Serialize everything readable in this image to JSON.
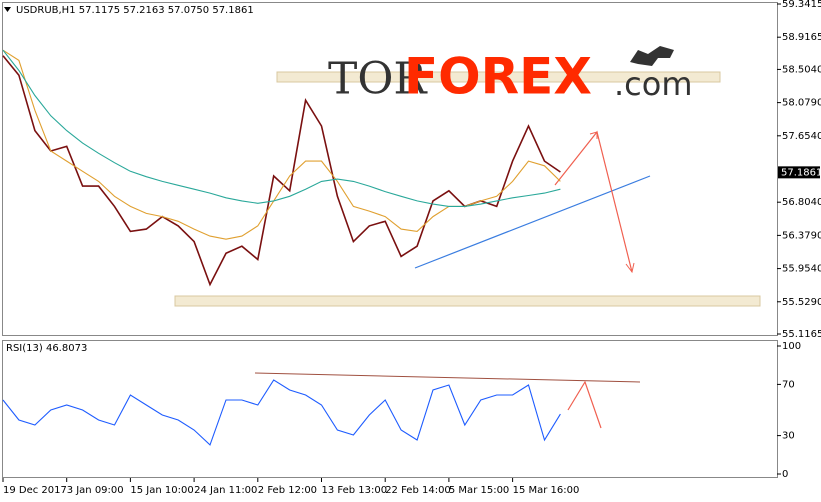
{
  "chart_data": [
    {
      "type": "line",
      "title": "USDRUB,H1 57.1175 57.2163 57.0750 57.1861",
      "categories": [
        "19 Dec 2017",
        null,
        null,
        null,
        "3 Jan 09:00",
        null,
        null,
        null,
        "15 Jan 10:00",
        null,
        null,
        null,
        "24 Jan 11:00",
        null,
        null,
        null,
        "2 Feb 12:00",
        null,
        null,
        null,
        "13 Feb 13:00",
        null,
        null,
        null,
        "22 Feb 14:00",
        null,
        null,
        null,
        "5 Mar 15:00",
        null,
        null,
        null,
        "15 Mar 16:00",
        null,
        null,
        null
      ],
      "series": [
        {
          "color": "#7a1010",
          "values": [
            58.68,
            58.43,
            57.72,
            57.46,
            57.52,
            57.01,
            57.01,
            56.75,
            56.43,
            56.46,
            56.62,
            56.5,
            56.3,
            55.75,
            56.15,
            56.24,
            56.07,
            57.14,
            56.95,
            58.11,
            57.78,
            56.88,
            56.3,
            56.5,
            56.56,
            56.11,
            56.24,
            56.82,
            56.95,
            56.75,
            56.82,
            56.75,
            57.33,
            57.78,
            57.33,
            57.19
          ]
        },
        {
          "color": "#e0a030",
          "values": [
            58.75,
            58.62,
            57.98,
            57.46,
            57.33,
            57.2,
            57.07,
            56.88,
            56.75,
            56.66,
            56.62,
            56.56,
            56.46,
            56.37,
            56.33,
            56.37,
            56.5,
            56.82,
            57.14,
            57.33,
            57.33,
            57.07,
            56.75,
            56.69,
            56.62,
            56.46,
            56.43,
            56.62,
            56.75,
            56.75,
            56.82,
            56.88,
            57.07,
            57.33,
            57.27,
            57.07
          ]
        },
        {
          "color": "#2aa89a",
          "values": [
            58.75,
            58.49,
            58.17,
            57.91,
            57.72,
            57.56,
            57.43,
            57.31,
            57.2,
            57.13,
            57.07,
            57.02,
            56.97,
            56.92,
            56.86,
            56.82,
            56.79,
            56.82,
            56.88,
            56.97,
            57.07,
            57.1,
            57.07,
            57.01,
            56.94,
            56.88,
            56.82,
            56.78,
            56.75,
            56.75,
            56.78,
            56.82,
            56.86,
            56.89,
            56.92,
            56.97
          ]
        }
      ],
      "ylim": [
        55.1165,
        59.3415
      ],
      "yticks": [
        59.3415,
        58.9165,
        {
          "value": 58.504,
          "label": "58.5040"
        },
        {
          "value": 58.079,
          "label": "58.0790"
        },
        {
          "value": 57.654,
          "label": "57.6540"
        },
        {
          "value": 56.804,
          "label": "56.8040"
        },
        {
          "value": 56.379,
          "label": "56.3790"
        },
        {
          "value": 55.954,
          "label": "55.9540"
        },
        {
          "value": 55.529,
          "label": "55.5290"
        },
        55.1165
      ],
      "last_price": 57.1861,
      "watermark": {
        "left": "TOR",
        "middle": "FOREX",
        "right": ".com"
      }
    },
    {
      "type": "line",
      "title": "RSI(13) 46.8073",
      "series": [
        {
          "color": "#1e5cff",
          "values": [
            57.8,
            42.2,
            38.3,
            50,
            53.9,
            50,
            42.2,
            38.3,
            61.7,
            53.9,
            46.1,
            42.2,
            34.4,
            22.7,
            57.8,
            57.8,
            53.9,
            73.4,
            65.6,
            61.7,
            53.9,
            34.4,
            30.5,
            46.1,
            57.8,
            34.4,
            26.6,
            65.6,
            69.5,
            38.3,
            57.8,
            61.7,
            61.7,
            69.5,
            26.6,
            46.8
          ]
        }
      ],
      "ylim": [
        0,
        100
      ],
      "yticks": [
        100,
        70,
        30,
        0
      ]
    }
  ]
}
